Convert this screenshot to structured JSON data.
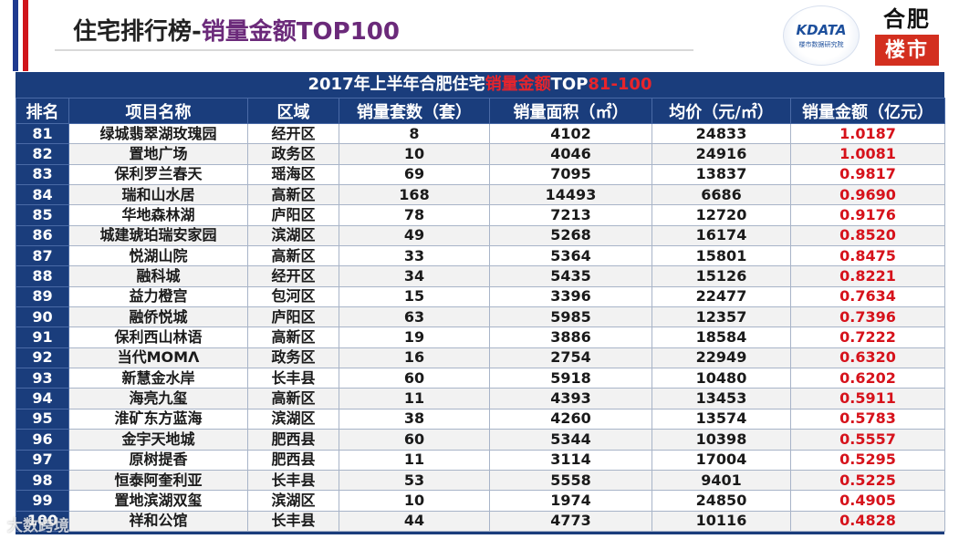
{
  "slide": {
    "title_part1": "住宅排行榜-",
    "title_part2": "销量金额TOP100"
  },
  "logos": {
    "data_logo_text": "DATA",
    "data_logo_prefix": "K",
    "data_logo_sub": "楼市数据研究院",
    "brand_line1": "合肥",
    "brand_line2": "楼市"
  },
  "table": {
    "caption_part1": "2017年上半年合肥住宅",
    "caption_part2": "销量金额",
    "caption_part3": "TOP",
    "caption_part4": "81-100",
    "headers": [
      "排名",
      "项目名称",
      "区域",
      "销量套数（套）",
      "销量面积（㎡）",
      "均价（元/㎡）",
      "销量金额（亿元）"
    ],
    "rows": [
      [
        "81",
        "绿城翡翠湖玫瑰园",
        "经开区",
        "8",
        "4102",
        "24833",
        "1.0187"
      ],
      [
        "82",
        "置地广场",
        "政务区",
        "10",
        "4046",
        "24916",
        "1.0081"
      ],
      [
        "83",
        "保利罗兰春天",
        "瑶海区",
        "69",
        "7095",
        "13837",
        "0.9817"
      ],
      [
        "84",
        "瑞和山水居",
        "高新区",
        "168",
        "14493",
        "6686",
        "0.9690"
      ],
      [
        "85",
        "华地森林湖",
        "庐阳区",
        "78",
        "7213",
        "12720",
        "0.9176"
      ],
      [
        "86",
        "城建琥珀瑞安家园",
        "滨湖区",
        "49",
        "5268",
        "16174",
        "0.8520"
      ],
      [
        "87",
        "悦湖山院",
        "高新区",
        "33",
        "5364",
        "15801",
        "0.8475"
      ],
      [
        "88",
        "融科城",
        "经开区",
        "34",
        "5435",
        "15126",
        "0.8221"
      ],
      [
        "89",
        "益力橙宫",
        "包河区",
        "15",
        "3396",
        "22477",
        "0.7634"
      ],
      [
        "90",
        "融侨悦城",
        "庐阳区",
        "63",
        "5985",
        "12357",
        "0.7396"
      ],
      [
        "91",
        "保利西山林语",
        "高新区",
        "19",
        "3886",
        "18584",
        "0.7222"
      ],
      [
        "92",
        "当代MOMΛ",
        "政务区",
        "16",
        "2754",
        "22949",
        "0.6320"
      ],
      [
        "93",
        "新慧金水岸",
        "长丰县",
        "60",
        "5918",
        "10480",
        "0.6202"
      ],
      [
        "94",
        "海亮九玺",
        "高新区",
        "11",
        "4393",
        "13453",
        "0.5911"
      ],
      [
        "95",
        "淮矿东方蓝海",
        "滨湖区",
        "38",
        "4260",
        "13574",
        "0.5783"
      ],
      [
        "96",
        "金宇天地城",
        "肥西县",
        "60",
        "5344",
        "10398",
        "0.5557"
      ],
      [
        "97",
        "原树提香",
        "肥西县",
        "11",
        "3114",
        "17004",
        "0.5295"
      ],
      [
        "98",
        "恒泰阿奎利亚",
        "长丰县",
        "53",
        "5558",
        "9401",
        "0.5225"
      ],
      [
        "99",
        "置地滨湖双玺",
        "滨湖区",
        "10",
        "1974",
        "24850",
        "0.4905"
      ],
      [
        "100",
        "祥和公馆",
        "长丰县",
        "44",
        "4773",
        "10116",
        "0.4828"
      ]
    ]
  },
  "watermark": "大数跨境",
  "colors": {
    "header_bg": "#1a3d7c",
    "amount_red": "#d6121b",
    "title_purple": "#6b2a7a"
  }
}
